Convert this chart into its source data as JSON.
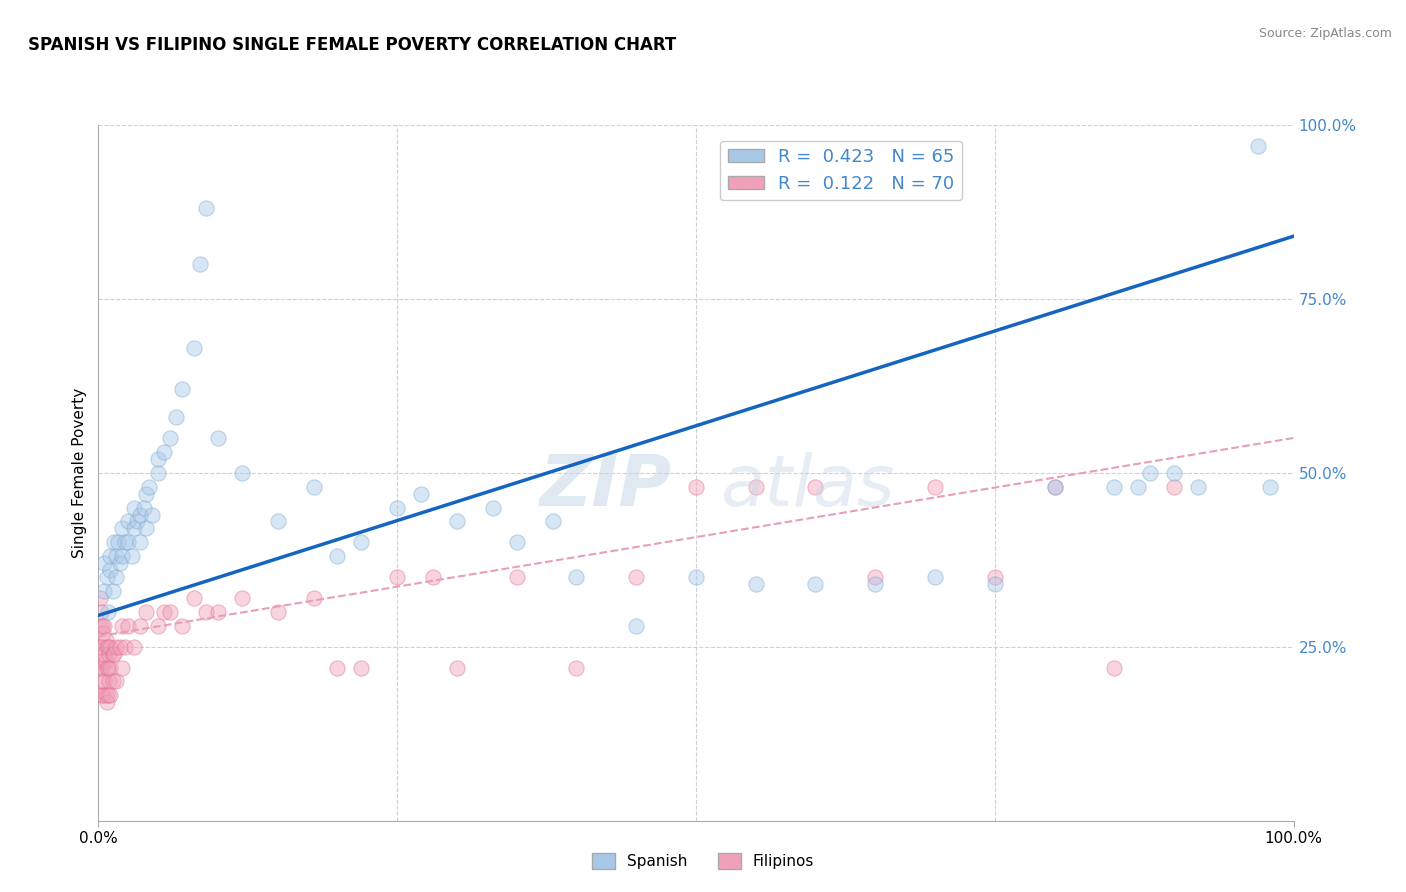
{
  "title": "SPANISH VS FILIPINO SINGLE FEMALE POVERTY CORRELATION CHART",
  "source": "Source: ZipAtlas.com",
  "ylabel": "Single Female Poverty",
  "xlim": [
    0,
    1.0
  ],
  "ylim": [
    0,
    1.0
  ],
  "legend_r_spanish": "R =  0.423",
  "legend_n_spanish": "N = 65",
  "legend_r_filipino": "R =  0.122",
  "legend_n_filipino": "N = 70",
  "watermark_zip": "ZIP",
  "watermark_atlas": "atlas",
  "spanish_color": "#a8c8e8",
  "filipino_color": "#f0a0b8",
  "spanish_edge_color": "#7aaad0",
  "filipino_edge_color": "#e07090",
  "spanish_line_color": "#1565c0",
  "filipino_line_color": "#e8a0b0",
  "background_color": "#ffffff",
  "grid_color": "#d0d0d0",
  "title_fontsize": 12,
  "axis_fontsize": 11,
  "tick_fontsize": 11,
  "marker_size": 120,
  "marker_alpha": 0.45,
  "legend_text_color": "#4488cc",
  "ytick_color": "#4488cc",
  "spanish_x": [
    0.005,
    0.005,
    0.007,
    0.008,
    0.01,
    0.01,
    0.012,
    0.013,
    0.015,
    0.015,
    0.016,
    0.018,
    0.02,
    0.02,
    0.022,
    0.025,
    0.025,
    0.028,
    0.03,
    0.03,
    0.032,
    0.035,
    0.035,
    0.038,
    0.04,
    0.04,
    0.042,
    0.045,
    0.05,
    0.05,
    0.055,
    0.06,
    0.065,
    0.07,
    0.08,
    0.085,
    0.09,
    0.1,
    0.12,
    0.15,
    0.18,
    0.2,
    0.22,
    0.25,
    0.27,
    0.3,
    0.33,
    0.35,
    0.38,
    0.4,
    0.45,
    0.5,
    0.55,
    0.6,
    0.65,
    0.7,
    0.75,
    0.8,
    0.85,
    0.87,
    0.88,
    0.9,
    0.92,
    0.97,
    0.98
  ],
  "spanish_y": [
    0.33,
    0.37,
    0.35,
    0.3,
    0.36,
    0.38,
    0.33,
    0.4,
    0.35,
    0.38,
    0.4,
    0.37,
    0.38,
    0.42,
    0.4,
    0.4,
    0.43,
    0.38,
    0.42,
    0.45,
    0.43,
    0.4,
    0.44,
    0.45,
    0.42,
    0.47,
    0.48,
    0.44,
    0.5,
    0.52,
    0.53,
    0.55,
    0.58,
    0.62,
    0.68,
    0.8,
    0.88,
    0.55,
    0.5,
    0.43,
    0.48,
    0.38,
    0.4,
    0.45,
    0.47,
    0.43,
    0.45,
    0.4,
    0.43,
    0.35,
    0.28,
    0.35,
    0.34,
    0.34,
    0.34,
    0.35,
    0.34,
    0.48,
    0.48,
    0.48,
    0.5,
    0.5,
    0.48,
    0.97,
    0.48
  ],
  "filipino_x": [
    0.001,
    0.001,
    0.001,
    0.002,
    0.002,
    0.002,
    0.003,
    0.003,
    0.003,
    0.003,
    0.004,
    0.004,
    0.004,
    0.005,
    0.005,
    0.005,
    0.006,
    0.006,
    0.006,
    0.007,
    0.007,
    0.007,
    0.008,
    0.008,
    0.008,
    0.009,
    0.009,
    0.01,
    0.01,
    0.01,
    0.012,
    0.012,
    0.013,
    0.015,
    0.015,
    0.018,
    0.02,
    0.02,
    0.022,
    0.025,
    0.03,
    0.035,
    0.04,
    0.05,
    0.055,
    0.06,
    0.07,
    0.08,
    0.09,
    0.1,
    0.12,
    0.15,
    0.18,
    0.2,
    0.22,
    0.25,
    0.28,
    0.3,
    0.35,
    0.4,
    0.45,
    0.5,
    0.55,
    0.6,
    0.65,
    0.7,
    0.75,
    0.8,
    0.85,
    0.9
  ],
  "filipino_y": [
    0.32,
    0.28,
    0.22,
    0.3,
    0.25,
    0.2,
    0.28,
    0.25,
    0.22,
    0.18,
    0.27,
    0.23,
    0.18,
    0.28,
    0.24,
    0.2,
    0.26,
    0.23,
    0.18,
    0.25,
    0.22,
    0.17,
    0.25,
    0.22,
    0.18,
    0.24,
    0.2,
    0.25,
    0.22,
    0.18,
    0.24,
    0.2,
    0.24,
    0.25,
    0.2,
    0.25,
    0.28,
    0.22,
    0.25,
    0.28,
    0.25,
    0.28,
    0.3,
    0.28,
    0.3,
    0.3,
    0.28,
    0.32,
    0.3,
    0.3,
    0.32,
    0.3,
    0.32,
    0.22,
    0.22,
    0.35,
    0.35,
    0.22,
    0.35,
    0.22,
    0.35,
    0.48,
    0.48,
    0.48,
    0.35,
    0.48,
    0.35,
    0.48,
    0.22,
    0.48
  ],
  "spanish_line_x": [
    0.0,
    1.0
  ],
  "spanish_line_y": [
    0.295,
    0.84
  ],
  "filipino_line_x": [
    0.0,
    1.0
  ],
  "filipino_line_y": [
    0.265,
    0.55
  ]
}
